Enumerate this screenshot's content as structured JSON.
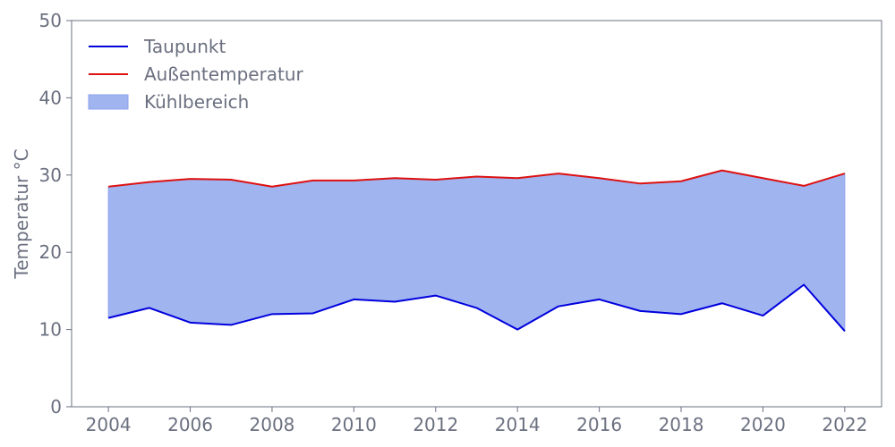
{
  "chart_data": {
    "type": "area",
    "title": "",
    "xlabel": "",
    "ylabel": "Temperatur °C",
    "xlim": [
      2003.1,
      2022.9
    ],
    "ylim": [
      0,
      50
    ],
    "x_ticks": [
      2004,
      2006,
      2008,
      2010,
      2012,
      2014,
      2016,
      2018,
      2020,
      2022
    ],
    "y_ticks": [
      0,
      10,
      20,
      30,
      40,
      50
    ],
    "grid": false,
    "legend_position": "top-left",
    "x": [
      2004,
      2005,
      2006,
      2007,
      2008,
      2009,
      2010,
      2011,
      2012,
      2013,
      2014,
      2015,
      2016,
      2017,
      2018,
      2019,
      2020,
      2021,
      2022
    ],
    "series": [
      {
        "name": "Taupunkt",
        "type": "line",
        "color": "#0000dd",
        "values": [
          11.5,
          12.8,
          10.9,
          10.6,
          12.0,
          12.1,
          13.9,
          13.6,
          14.4,
          12.8,
          10.0,
          13.0,
          13.9,
          12.4,
          12.0,
          13.4,
          11.8,
          15.8,
          9.8
        ]
      },
      {
        "name": "Außentemperatur",
        "type": "line",
        "color": "#dd1111",
        "values": [
          28.5,
          29.1,
          29.5,
          29.4,
          28.5,
          29.3,
          29.3,
          29.6,
          29.4,
          29.8,
          29.6,
          30.2,
          29.6,
          28.9,
          29.2,
          30.6,
          29.6,
          28.6,
          30.2
        ]
      }
    ],
    "fill_between": {
      "name": "Kühlbereich",
      "lower_series": "Taupunkt",
      "upper_series": "Außentemperatur",
      "color": "#a0b4f0",
      "edge_color": "#8ea3ec"
    },
    "axis_color": "#6b7080"
  }
}
